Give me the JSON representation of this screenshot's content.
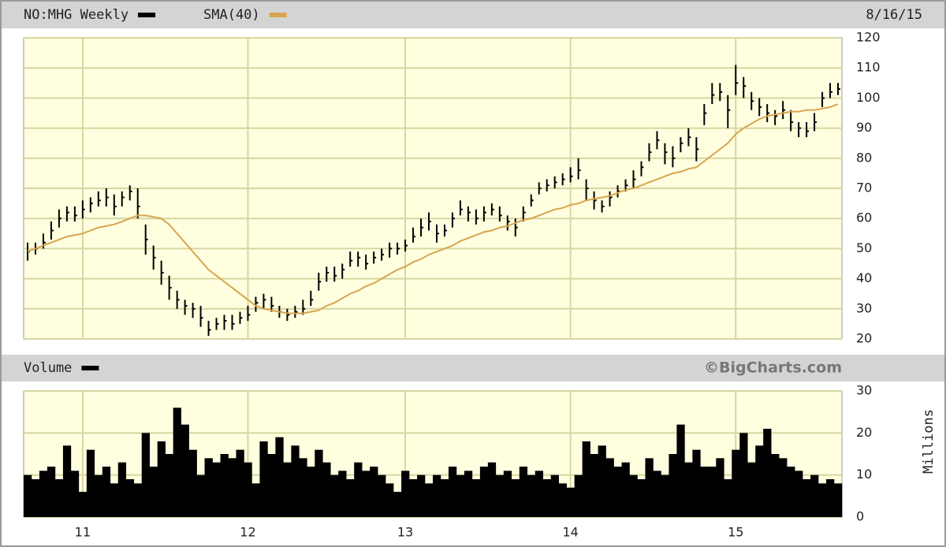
{
  "chart_data": [
    {
      "type": "ohlc",
      "date": "8/16/15",
      "ylim": [
        20,
        120
      ],
      "yticks": [
        20,
        30,
        40,
        50,
        60,
        70,
        80,
        90,
        100,
        110,
        120
      ],
      "grid": true,
      "series": [
        {
          "name": "NO:MHG Weekly",
          "color": "#000000",
          "high": [
            52,
            52,
            55,
            59,
            63,
            64,
            64,
            66,
            67,
            69,
            70,
            68,
            69,
            71,
            70,
            58,
            51,
            46,
            41,
            36,
            33,
            32,
            31,
            26,
            27,
            28,
            28,
            29,
            31,
            34,
            35,
            34,
            31,
            30,
            31,
            33,
            36,
            42,
            44,
            44,
            45,
            49,
            49,
            48,
            49,
            50,
            52,
            52,
            53,
            57,
            60,
            62,
            58,
            58,
            62,
            66,
            64,
            63,
            64,
            65,
            64,
            61,
            60,
            64,
            68,
            72,
            73,
            74,
            75,
            77,
            80,
            73,
            69,
            66,
            69,
            71,
            73,
            76,
            79,
            85,
            89,
            85,
            84,
            87,
            90,
            87,
            98,
            105,
            105,
            101,
            111,
            107,
            102,
            100,
            98,
            96,
            99,
            96,
            92,
            92,
            95,
            102,
            105,
            105
          ],
          "low": [
            46,
            48,
            50,
            53,
            57,
            59,
            59,
            60,
            62,
            64,
            64,
            61,
            64,
            66,
            60,
            48,
            43,
            38,
            33,
            30,
            28,
            27,
            24,
            21,
            23,
            23,
            23,
            25,
            26,
            29,
            30,
            29,
            27,
            26,
            27,
            28,
            31,
            36,
            39,
            39,
            40,
            44,
            44,
            43,
            45,
            46,
            47,
            48,
            49,
            52,
            54,
            56,
            52,
            54,
            57,
            61,
            59,
            58,
            59,
            61,
            59,
            56,
            54,
            59,
            64,
            68,
            69,
            70,
            71,
            72,
            73,
            66,
            63,
            62,
            64,
            67,
            69,
            70,
            74,
            79,
            83,
            78,
            77,
            82,
            84,
            79,
            91,
            98,
            99,
            90,
            101,
            100,
            96,
            94,
            92,
            91,
            93,
            89,
            87,
            87,
            89,
            97,
            100,
            101
          ],
          "close": [
            49,
            50,
            52,
            56,
            60,
            62,
            61,
            63,
            65,
            66,
            67,
            64,
            67,
            69,
            64,
            53,
            47,
            42,
            37,
            33,
            31,
            30,
            27,
            23,
            25,
            26,
            25,
            27,
            28,
            32,
            33,
            31,
            29,
            28,
            29,
            30,
            33,
            39,
            42,
            41,
            43,
            46,
            47,
            45,
            47,
            48,
            50,
            50,
            51,
            54,
            57,
            59,
            55,
            56,
            60,
            63,
            62,
            60,
            62,
            63,
            61,
            59,
            57,
            62,
            66,
            70,
            71,
            72,
            73,
            74,
            76,
            70,
            66,
            64,
            67,
            69,
            71,
            73,
            77,
            82,
            86,
            82,
            80,
            85,
            87,
            83,
            95,
            101,
            102,
            96,
            105,
            104,
            99,
            97,
            95,
            94,
            96,
            92,
            90,
            89,
            92,
            100,
            102,
            103
          ]
        },
        {
          "name": "SMA(40)",
          "color": "#d9a54e",
          "values": [
            49,
            50,
            51,
            52,
            53,
            54,
            54.5,
            55,
            56,
            57,
            57.5,
            58,
            59,
            60,
            61,
            61,
            60.5,
            60,
            58,
            55,
            52,
            49,
            46,
            43,
            41,
            39,
            37,
            35,
            33,
            31,
            30,
            29.5,
            29,
            28.5,
            28.5,
            28.5,
            29,
            29.5,
            31,
            32,
            33.5,
            35,
            36,
            37.5,
            38.5,
            40,
            41.5,
            43,
            44,
            45.5,
            46.5,
            48,
            49,
            50,
            51,
            52.5,
            53.5,
            54.5,
            55.5,
            56,
            57,
            57.5,
            58.5,
            59.5,
            60,
            61,
            62,
            63,
            63.5,
            64.5,
            65,
            66,
            66.5,
            67,
            67.5,
            68.5,
            69.5,
            70,
            71,
            72,
            73,
            74,
            75,
            75.5,
            76.5,
            77,
            79,
            81,
            83,
            85,
            88,
            90,
            91.5,
            93,
            94,
            94.5,
            95,
            95.5,
            95.5,
            96,
            96,
            96.5,
            97,
            98
          ]
        }
      ]
    },
    {
      "type": "bar",
      "title": "Volume",
      "source": "©BigCharts.com",
      "ylabel": "Millions",
      "color": "#000000",
      "ylim": [
        0,
        30
      ],
      "yticks": [
        0,
        10,
        20,
        30
      ],
      "grid": true,
      "categories": [
        null,
        null,
        null,
        null,
        null,
        null,
        null,
        "11",
        null,
        null,
        null,
        null,
        null,
        null,
        null,
        null,
        null,
        null,
        null,
        null,
        null,
        null,
        null,
        null,
        null,
        null,
        null,
        null,
        "12",
        null,
        null,
        null,
        null,
        null,
        null,
        null,
        null,
        null,
        null,
        null,
        null,
        null,
        null,
        null,
        null,
        null,
        null,
        null,
        "13",
        null,
        null,
        null,
        null,
        null,
        null,
        null,
        null,
        null,
        null,
        null,
        null,
        null,
        null,
        null,
        null,
        null,
        null,
        null,
        null,
        "14",
        null,
        null,
        null,
        null,
        null,
        null,
        null,
        null,
        null,
        null,
        null,
        null,
        null,
        null,
        null,
        null,
        null,
        null,
        null,
        null,
        "15",
        null,
        null,
        null,
        null,
        null,
        null,
        null,
        null,
        null,
        null,
        null,
        null,
        null
      ],
      "values": [
        10,
        9,
        11,
        12,
        9,
        17,
        11,
        6,
        16,
        10,
        12,
        8,
        13,
        9,
        8,
        20,
        12,
        18,
        15,
        26,
        22,
        16,
        10,
        14,
        13,
        15,
        14,
        16,
        13,
        8,
        18,
        15,
        19,
        13,
        17,
        14,
        12,
        16,
        13,
        10,
        11,
        9,
        13,
        11,
        12,
        10,
        8,
        6,
        11,
        9,
        10,
        8,
        10,
        9,
        12,
        10,
        11,
        9,
        12,
        13,
        10,
        11,
        9,
        12,
        10,
        11,
        9,
        10,
        8,
        7,
        10,
        18,
        15,
        17,
        14,
        12,
        13,
        10,
        9,
        14,
        11,
        10,
        15,
        22,
        13,
        16,
        12,
        12,
        14,
        9,
        16,
        20,
        13,
        17,
        21,
        15,
        14,
        12,
        11,
        9,
        10,
        8,
        9,
        8
      ]
    }
  ]
}
